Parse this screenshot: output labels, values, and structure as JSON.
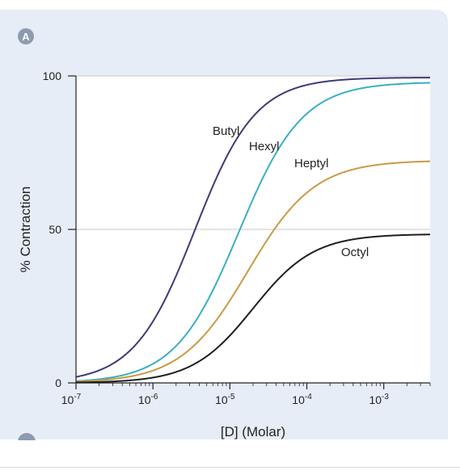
{
  "panel": {
    "badge": "A"
  },
  "chart_data": {
    "type": "line",
    "title": "",
    "xlabel": "[D] (Molar)",
    "ylabel": "% Contraction",
    "x_scale": "log",
    "x_range": [
      1e-07,
      0.004
    ],
    "ylim": [
      0,
      100
    ],
    "x_ticks": [
      {
        "value": 1e-07,
        "base": "10",
        "exp": "-7"
      },
      {
        "value": 1e-06,
        "base": "10",
        "exp": "-6"
      },
      {
        "value": 1e-05,
        "base": "10",
        "exp": "-5"
      },
      {
        "value": 0.0001,
        "base": "10",
        "exp": "-4"
      },
      {
        "value": 0.001,
        "base": "10",
        "exp": "-3"
      }
    ],
    "y_ticks": [
      {
        "value": 0,
        "label": "0"
      },
      {
        "value": 50,
        "label": "50"
      },
      {
        "value": 100,
        "label": "100"
      }
    ],
    "gridlines_y": [
      50,
      100
    ],
    "series": [
      {
        "name": "Butyl",
        "color": "#3d3a78",
        "max": 99.5,
        "ec50": 3.5e-06,
        "hill": 1.1
      },
      {
        "name": "Hexyl",
        "color": "#3aaec4",
        "max": 98,
        "ec50": 1.3e-05,
        "hill": 1.05
      },
      {
        "name": "Heptyl",
        "color": "#c99a45",
        "max": 72.5,
        "ec50": 1.7e-05,
        "hill": 1.0
      },
      {
        "name": "Octyl",
        "color": "#1e1e1e",
        "max": 48.5,
        "ec50": 2e-05,
        "hill": 1.1
      }
    ]
  }
}
